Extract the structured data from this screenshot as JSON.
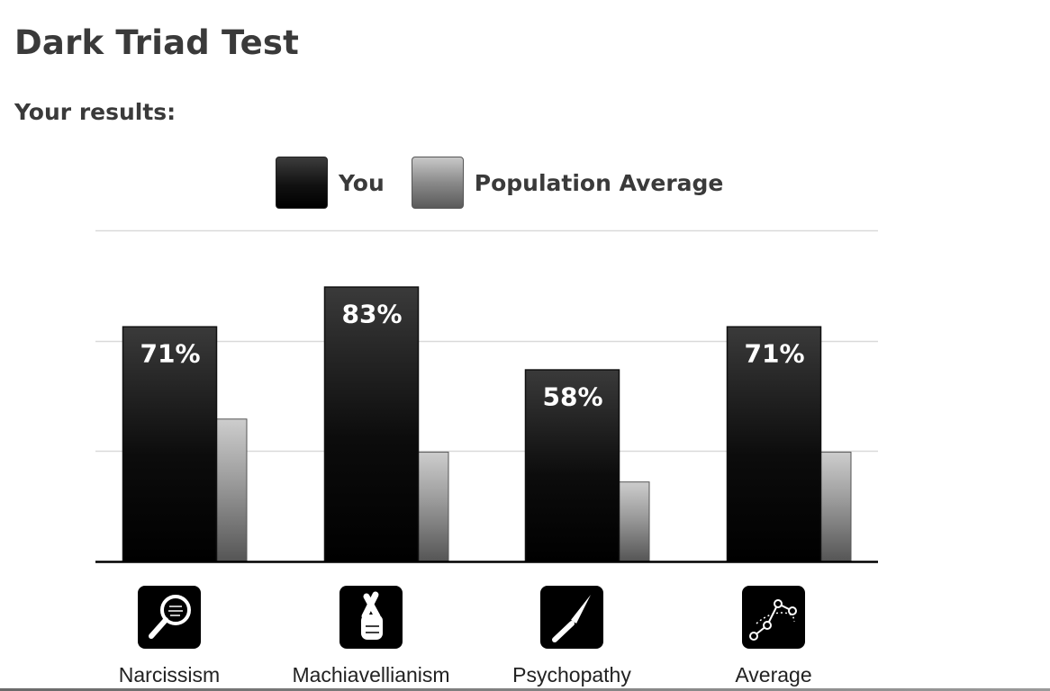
{
  "page": {
    "title": "Dark Triad Test",
    "results_heading": "Your results:"
  },
  "legend": {
    "you": "You",
    "population": "Population Average"
  },
  "chart_data": {
    "type": "bar",
    "categories": [
      "Narcissism",
      "Machiavellianism",
      "Psychopathy",
      "Average"
    ],
    "category_icons": [
      "magnifying-glass-icon",
      "crossed-fingers-icon",
      "knife-icon",
      "line-chart-icon"
    ],
    "series": [
      {
        "name": "You",
        "values": [
          71,
          83,
          58,
          71
        ],
        "labels": [
          "71%",
          "83%",
          "58%",
          "71%"
        ]
      },
      {
        "name": "Population Average",
        "values": [
          43,
          33,
          24,
          33
        ]
      }
    ],
    "ylim": [
      0,
      100
    ],
    "grid": true,
    "legend": "top-center",
    "colors": {
      "you": "#000000",
      "population": "#8a8a8a",
      "grid": "#d9d9d9",
      "axis": "#000000"
    }
  }
}
